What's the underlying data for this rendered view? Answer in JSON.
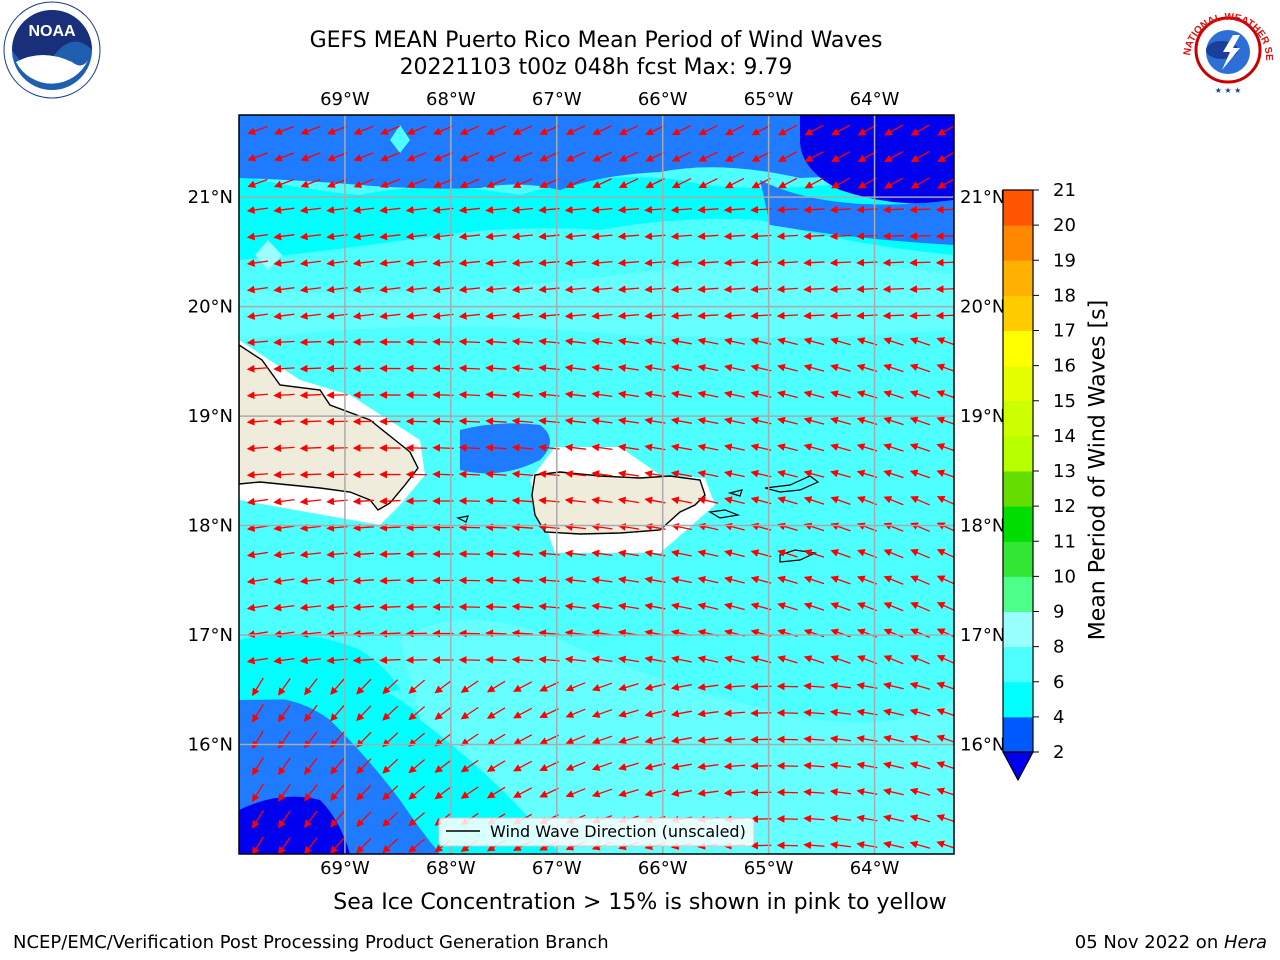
{
  "title": {
    "line1": "GEFS MEAN Puerto Rico Mean Period of Wind Waves",
    "line2": "20221103 t00z 048h fcst   Max: 9.79"
  },
  "map": {
    "lon_labels": [
      "69°W",
      "68°W",
      "67°W",
      "66°W",
      "65°W",
      "64°W"
    ],
    "lat_labels": [
      "21°N",
      "20°N",
      "19°N",
      "18°N",
      "17°N",
      "16°N"
    ],
    "lon_values": [
      -69,
      -68,
      -67,
      -66,
      -65,
      -64
    ],
    "lat_values": [
      21,
      20,
      19,
      18,
      17,
      16
    ],
    "extent": {
      "lon_min": -70.0,
      "lon_max": -63.25,
      "lat_min": 15.0,
      "lat_max": 21.75
    },
    "max_value": 9.79,
    "legend_label": "Wind Wave Direction (unscaled)",
    "arrow_color": "#ff0000",
    "land_color": "#efecdc"
  },
  "colorbar": {
    "title": "Mean Period of Wind Waves [s]",
    "ticks": [
      "2",
      "4",
      "6",
      "8",
      "9",
      "10",
      "11",
      "12",
      "13",
      "14",
      "15",
      "16",
      "17",
      "18",
      "19",
      "20",
      "21"
    ],
    "colors": [
      "#0059ff",
      "#00ffff",
      "#4dffff",
      "#99ffff",
      "#4dff88",
      "#33e633",
      "#00dd00",
      "#66dd00",
      "#b8ff00",
      "#ccff00",
      "#e5ff00",
      "#ffff00",
      "#ffcc00",
      "#ffb000",
      "#ff8800",
      "#ff5500",
      "#ff2a00",
      "#ff0000"
    ],
    "underflow_color": "#0000ee"
  },
  "subtitle": "Sea Ice Concentration > 15% is shown in pink to yellow",
  "footer": {
    "left": "NCEP/EMC/Verification Post Processing Product Generation Branch",
    "right_date": "05 Nov 2022 on ",
    "right_host": "Hera"
  },
  "logos": {
    "noaa_text": "NOAA",
    "nws_text": "NATIONAL WEATHER SERVICE"
  }
}
